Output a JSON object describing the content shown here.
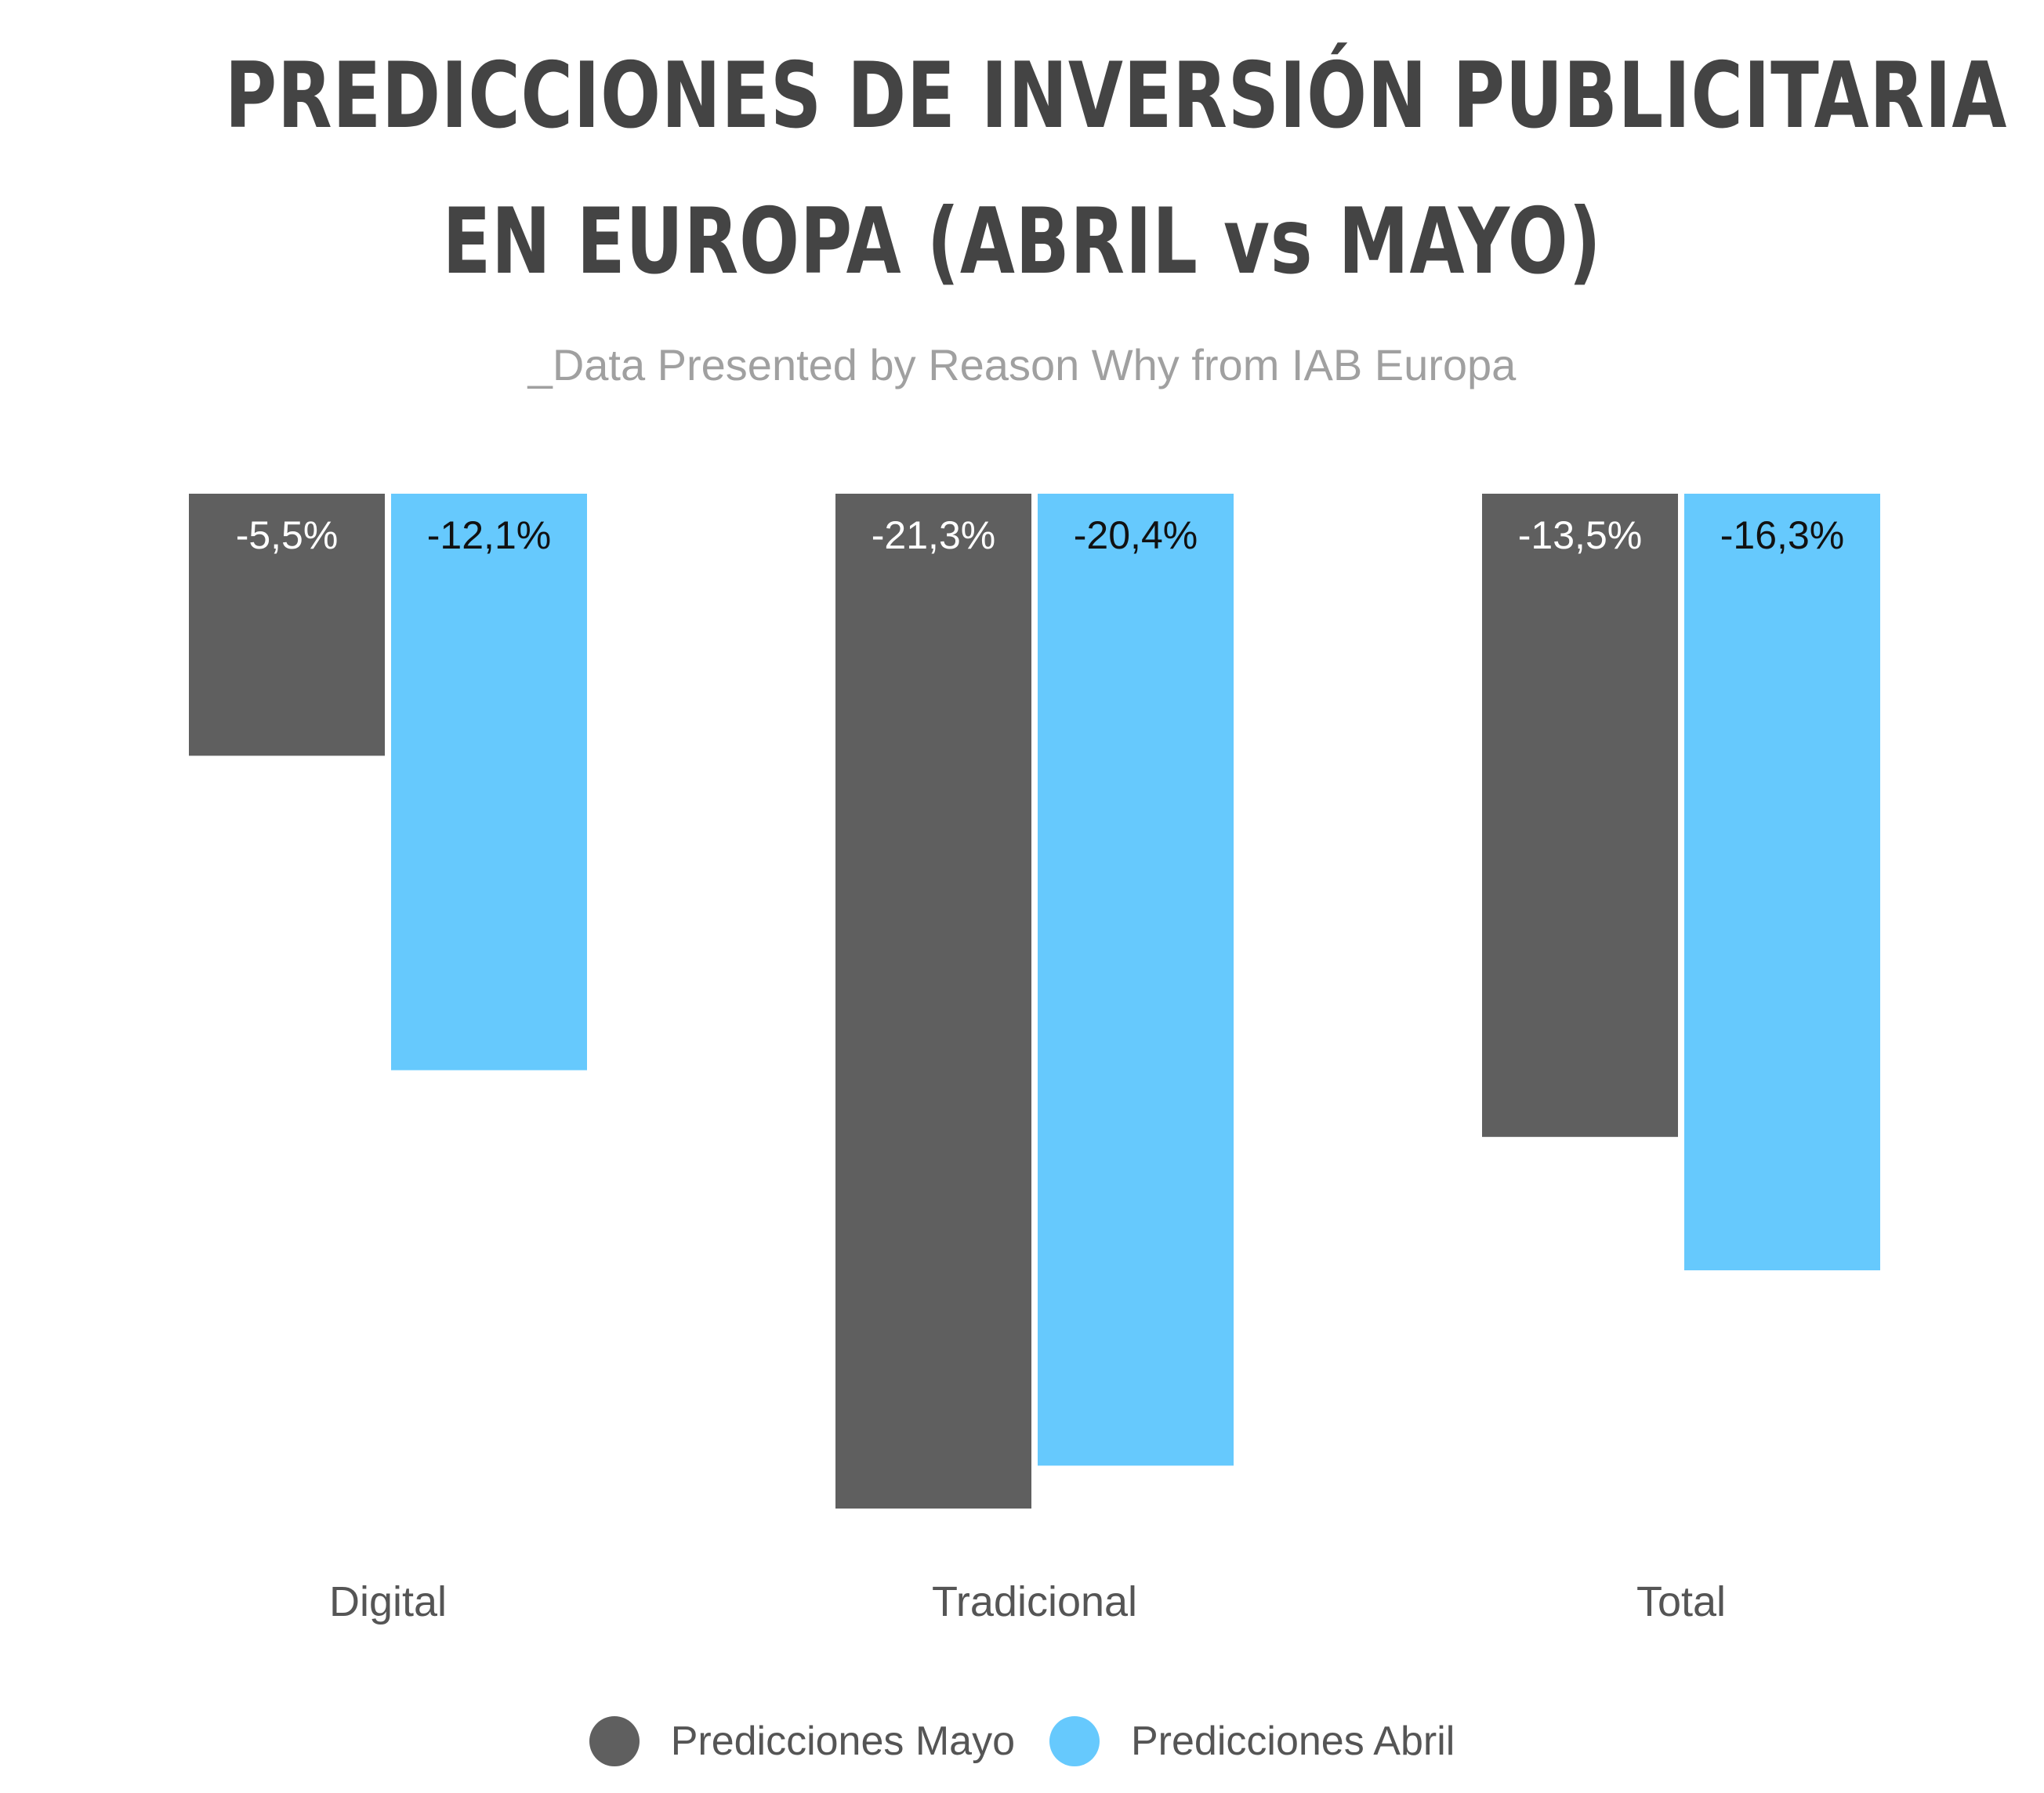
{
  "header": {
    "title_line1": "PREDICCIONES DE INVERSIÓN PUBLICITARIA",
    "title_line2": "EN EUROPA (ABRIL vs MAYO)",
    "subtitle": "_Data Presented by Reason Why from IAB Europa"
  },
  "colors": {
    "mayo": "#5f5f5f",
    "abril": "#66c9fd",
    "title": "#444444",
    "subtitle": "#a0a0a0",
    "axis_label": "#555555"
  },
  "chart_data": {
    "type": "bar",
    "title": "PREDICCIONES DE INVERSIÓN PUBLICITARIA EN EUROPA (ABRIL vs MAYO)",
    "subtitle": "_Data Presented by Reason Why from IAB Europa",
    "categories": [
      "Digital",
      "Tradicional",
      "Total"
    ],
    "series": [
      {
        "name": "Predicciones Mayo",
        "values": [
          -5.5,
          -21.3,
          -13.5
        ],
        "labels": [
          "-5,5%",
          "-21,3%",
          "-13,5%"
        ],
        "color": "#5f5f5f"
      },
      {
        "name": "Predicciones Abril",
        "values": [
          -12.1,
          -20.4,
          -16.3
        ],
        "labels": [
          "-12,1%",
          "-20,4%",
          "-16,3%"
        ],
        "color": "#66c9fd"
      }
    ],
    "ylim": [
      -21.3,
      0
    ],
    "grid": false,
    "legend": "bottom-center",
    "axis_visible": false
  }
}
